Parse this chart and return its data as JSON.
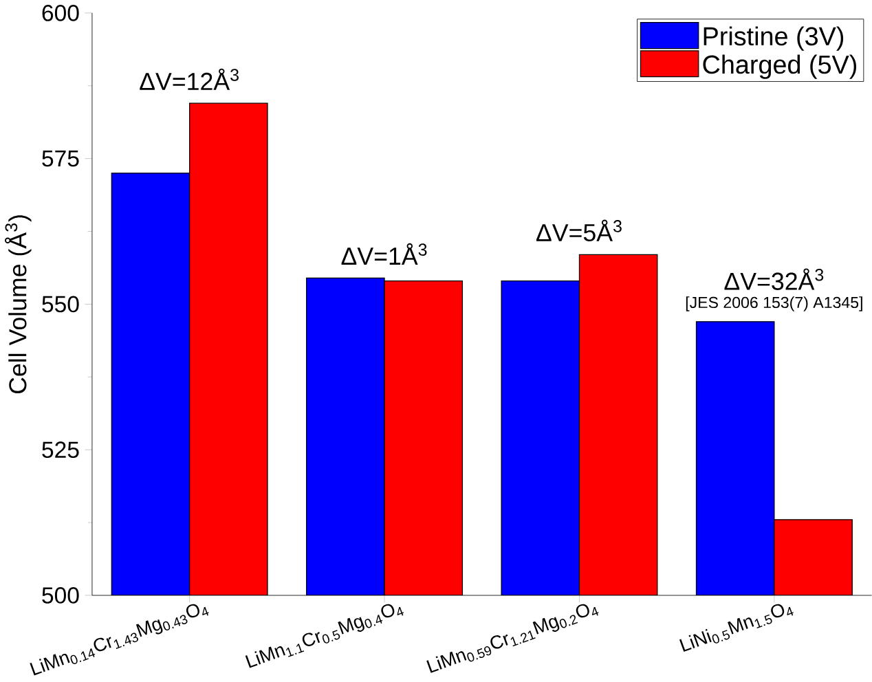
{
  "chart_data": {
    "type": "bar",
    "ylabel": "Cell Volume (Å$^{3}$)",
    "categories": [
      "LiMn$_{0.14}$Cr$_{1.43}$Mg$_{0.43}$O$_{4}$",
      "LiMn$_{1.1}$Cr$_{0.5}$Mg$_{0.4}$O$_{4}$",
      "LiMn$_{0.59}$Cr$_{1.21}$Mg$_{0.2}$O$_{4}$",
      "LiNi$_{0.5}$Mn$_{1.5}$O$_{4}$"
    ],
    "series": [
      {
        "name": "Pristine (3V)",
        "color": "#0000ff",
        "values": [
          572.5,
          554.5,
          554,
          547
        ]
      },
      {
        "name": "Charged (5V)",
        "color": "#ff0000",
        "values": [
          584.5,
          554,
          558.5,
          513
        ]
      }
    ],
    "ylim": [
      500,
      600
    ],
    "yticks": [
      500,
      525,
      550,
      575,
      600
    ],
    "grid": false,
    "legend": "top right",
    "annotations": [
      "ΔV=12Å$^{3}$",
      "ΔV=1Å$^{3}$",
      "ΔV=5Å$^{3}$",
      "ΔV=32Å$^{3}$",
      "[JES 2006 153(7) A1345]"
    ]
  }
}
